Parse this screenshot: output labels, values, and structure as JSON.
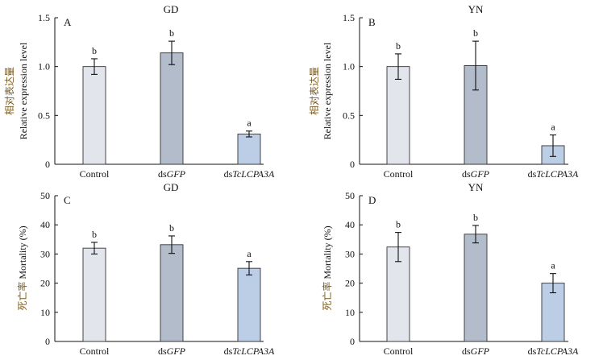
{
  "colors": {
    "control": "#e2e5ec",
    "dsGFP": "#b2bccb",
    "dsTcLCPA3A": "#bccde6"
  },
  "chart_data": [
    {
      "type": "bar",
      "letter": "A",
      "title": "GD",
      "ylabel_cn": "相对表达量",
      "ylabel_en": "Relative expression level",
      "ylim": [
        0,
        1.5
      ],
      "yticks": [
        "0",
        "0.5",
        "1.0",
        "1.5"
      ],
      "categories": [
        {
          "pre": "Control",
          "ital": ""
        },
        {
          "pre": "ds",
          "ital": "GFP"
        },
        {
          "pre": "ds",
          "ital": "TcLCPA3A"
        }
      ],
      "values": [
        1.0,
        1.14,
        0.31
      ],
      "errors": [
        0.08,
        0.12,
        0.03
      ],
      "sig": [
        "b",
        "b",
        "a"
      ]
    },
    {
      "type": "bar",
      "letter": "B",
      "title": "YN",
      "ylabel_cn": "相对表达量",
      "ylabel_en": "Relative expression level",
      "ylim": [
        0,
        1.5
      ],
      "yticks": [
        "0",
        "0.5",
        "1.0",
        "1.5"
      ],
      "categories": [
        {
          "pre": "Control",
          "ital": ""
        },
        {
          "pre": "ds",
          "ital": "GFP"
        },
        {
          "pre": "ds",
          "ital": "TcLCPA3A"
        }
      ],
      "values": [
        1.0,
        1.01,
        0.19
      ],
      "errors": [
        0.13,
        0.25,
        0.11
      ],
      "sig": [
        "b",
        "b",
        "a"
      ]
    },
    {
      "type": "bar",
      "letter": "C",
      "title": "GD",
      "ylabel_cn": "死亡率",
      "ylabel_en": "Mortality (%)",
      "ylim": [
        0,
        50
      ],
      "yticks": [
        "0",
        "10",
        "20",
        "30",
        "40",
        "50"
      ],
      "categories": [
        {
          "pre": "Control",
          "ital": ""
        },
        {
          "pre": "ds",
          "ital": "GFP"
        },
        {
          "pre": "ds",
          "ital": "TcLCPA3A"
        }
      ],
      "values": [
        32.0,
        33.2,
        25.1
      ],
      "errors": [
        2.0,
        3.0,
        2.3
      ],
      "sig": [
        "b",
        "b",
        "a"
      ]
    },
    {
      "type": "bar",
      "letter": "D",
      "title": "YN",
      "ylabel_cn": "死亡率",
      "ylabel_en": "Mortality (%)",
      "ylim": [
        0,
        50
      ],
      "yticks": [
        "0",
        "10",
        "20",
        "30",
        "40",
        "50"
      ],
      "categories": [
        {
          "pre": "Control",
          "ital": ""
        },
        {
          "pre": "ds",
          "ital": "GFP"
        },
        {
          "pre": "ds",
          "ital": "TcLCPA3A"
        }
      ],
      "values": [
        32.4,
        36.8,
        20.0
      ],
      "errors": [
        5.0,
        3.0,
        3.3
      ],
      "sig": [
        "b",
        "b",
        "a"
      ]
    }
  ]
}
